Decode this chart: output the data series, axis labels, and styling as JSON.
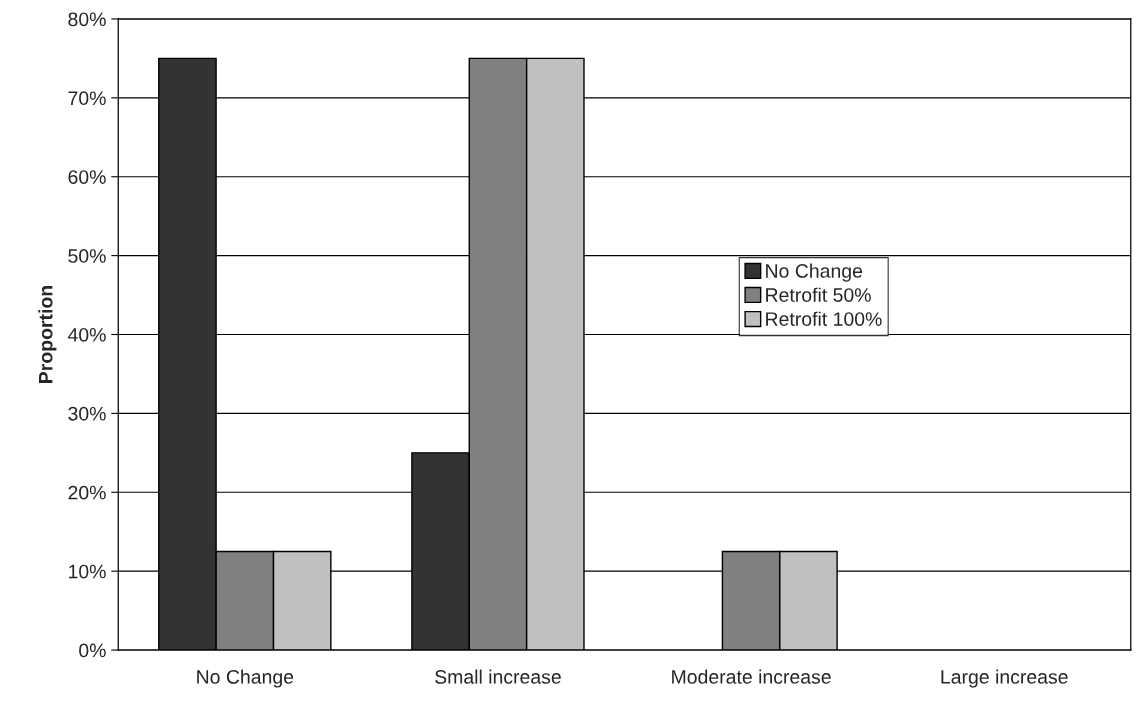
{
  "chart_data": {
    "type": "bar",
    "ylabel": "Proportion",
    "categories": [
      "No Change",
      "Small increase",
      "Moderate increase",
      "Large increase"
    ],
    "series": [
      {
        "name": "No Change",
        "color": "#333333",
        "values": [
          75,
          25,
          null,
          null
        ]
      },
      {
        "name": "Retrofit 50%",
        "color": "#808080",
        "values": [
          12.5,
          75,
          12.5,
          null
        ]
      },
      {
        "name": "Retrofit 100%",
        "color": "#c0c0c0",
        "values": [
          12.5,
          75,
          12.5,
          null
        ]
      }
    ],
    "ylim": [
      0,
      80
    ],
    "yticks": [
      {
        "value": 0,
        "label": "0%"
      },
      {
        "value": 10,
        "label": "10%"
      },
      {
        "value": 20,
        "label": "20%"
      },
      {
        "value": 30,
        "label": "30%"
      },
      {
        "value": 40,
        "label": "40%"
      },
      {
        "value": 50,
        "label": "50%"
      },
      {
        "value": 60,
        "label": "60%"
      },
      {
        "value": 70,
        "label": "70%"
      },
      {
        "value": 80,
        "label": "80%"
      }
    ],
    "grid": "y",
    "legend": "right"
  }
}
